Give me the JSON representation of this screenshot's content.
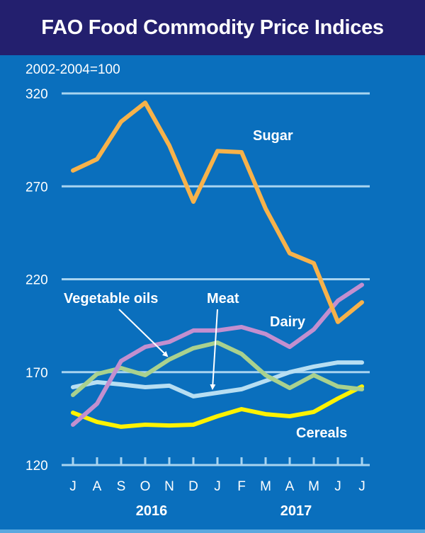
{
  "chart_data": {
    "type": "line",
    "title": "FAO Food Commodity Price Indices",
    "subtitle": "2002-2004=100",
    "xlabel": "",
    "ylabel": "",
    "ylim": [
      120,
      320
    ],
    "yticks": [
      120,
      170,
      220,
      270,
      320
    ],
    "grid": true,
    "categories": [
      "J",
      "A",
      "S",
      "O",
      "N",
      "D",
      "J",
      "F",
      "M",
      "A",
      "M",
      "J",
      "J"
    ],
    "year_labels": [
      {
        "label": "2016",
        "center_index": 3.5
      },
      {
        "label": "2017",
        "center_index": 9.5
      }
    ],
    "series": [
      {
        "name": "Sugar",
        "color": "#f7b24a",
        "values": [
          278.5,
          284.6,
          304.8,
          315.0,
          292.0,
          261.7,
          289.0,
          288.4,
          258.0,
          234.0,
          228.6,
          197.0,
          207.6
        ]
      },
      {
        "name": "Dairy",
        "color": "#c38fcf",
        "values": [
          141.7,
          153.0,
          176.0,
          183.6,
          186.3,
          192.4,
          192.4,
          194.3,
          190.5,
          183.6,
          193.0,
          208.4,
          217.0
        ]
      },
      {
        "name": "Vegetable oils",
        "color": "#a9d18e",
        "values": [
          157.7,
          169.0,
          172.2,
          168.4,
          176.8,
          182.9,
          185.9,
          179.8,
          168.4,
          161.5,
          168.4,
          162.3,
          160.8
        ]
      },
      {
        "name": "Meat",
        "color": "#b7def2",
        "values": [
          161.9,
          164.6,
          163.4,
          161.9,
          162.7,
          157.0,
          158.9,
          160.8,
          165.3,
          170.0,
          173.0,
          175.2,
          175.2
        ]
      },
      {
        "name": "Cereals",
        "color": "#fff200",
        "values": [
          148.2,
          143.2,
          140.6,
          141.7,
          141.3,
          141.7,
          146.3,
          150.1,
          147.4,
          146.3,
          148.6,
          155.8,
          162.3
        ]
      }
    ],
    "annotations": [
      {
        "text": "Sugar",
        "series": "Sugar",
        "arrow": false
      },
      {
        "text": "Dairy",
        "series": "Dairy",
        "arrow": false
      },
      {
        "text": "Vegetable oils",
        "series": "Vegetable oils",
        "arrow": true
      },
      {
        "text": "Meat",
        "series": "Meat",
        "arrow": true
      },
      {
        "text": "Cereals",
        "series": "Cereals",
        "arrow": false
      }
    ]
  },
  "colors": {
    "header_bg": "#231f6e",
    "plot_bg": "#0a6fbd",
    "grid": "#a8d4f0",
    "text": "#ffffff"
  }
}
